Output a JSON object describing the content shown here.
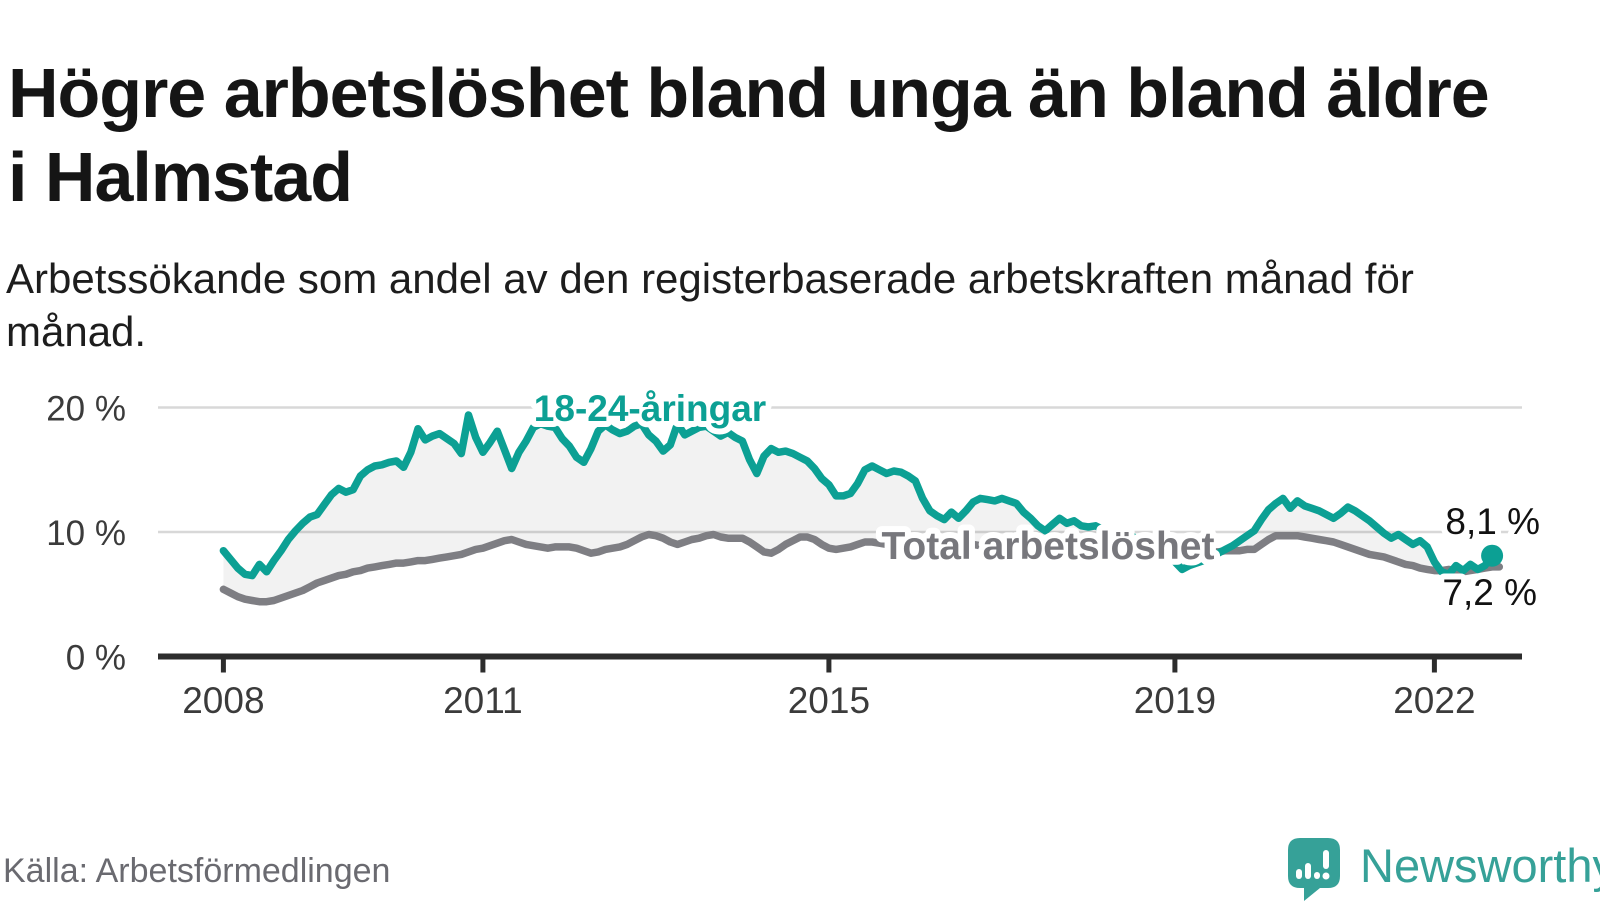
{
  "title": "Högre arbetslöshet bland unga än bland äldre i Halmstad",
  "subtitle": "Arbetssökande som andel av den registerbaserade arbetskraften månad för månad.",
  "source": "Källa: Arbetsförmedlingen",
  "brand": {
    "name": "Newsworthy",
    "color": "#36a198"
  },
  "colors": {
    "youth_line": "#0ca094",
    "total_line": "#7e7e83",
    "band_fill": "rgba(0,0,0,0.05)",
    "gridline": "#d8d8d8",
    "axis": "#2d2d2d",
    "value_label": "#121212"
  },
  "chart_data": {
    "type": "line",
    "title": "Högre arbetslöshet bland unga än bland äldre i Halmstad",
    "subtitle": "Arbetssökande som andel av den registerbaserade arbetskraften månad för månad.",
    "frequency": "monthly",
    "x_start": "2008-01",
    "grid": "horizontal",
    "ylim": [
      0,
      21.5
    ],
    "y_ticks": [
      {
        "value": 0,
        "label": "0 %"
      },
      {
        "value": 10,
        "label": "10 %"
      },
      {
        "value": 20,
        "label": "20 %"
      }
    ],
    "x_ticks": [
      {
        "year": 2008,
        "label": "2008"
      },
      {
        "year": 2011,
        "label": "2011"
      },
      {
        "year": 2015,
        "label": "2015"
      },
      {
        "year": 2019,
        "label": "2019"
      },
      {
        "year": 2022,
        "label": "2022"
      }
    ],
    "band_between_series": true,
    "series": [
      {
        "name": "18-24-åringar",
        "color": "#0ca094",
        "end_label": "8,1 %",
        "end_value": 8.1,
        "marker_on_last_point": true,
        "values": [
          8.5,
          7.8,
          7.1,
          6.6,
          6.5,
          7.4,
          6.8,
          7.7,
          8.5,
          9.4,
          10.1,
          10.7,
          11.2,
          11.4,
          12.2,
          13.0,
          13.5,
          13.2,
          13.4,
          14.5,
          15.0,
          15.3,
          15.4,
          15.6,
          15.7,
          15.2,
          16.4,
          18.3,
          17.4,
          17.7,
          17.9,
          17.5,
          17.1,
          16.3,
          19.4,
          17.6,
          16.4,
          17.2,
          18.1,
          16.6,
          15.1,
          16.4,
          17.3,
          18.4,
          18.7,
          18.5,
          18.4,
          17.5,
          16.9,
          16.0,
          15.6,
          16.7,
          18.1,
          18.6,
          18.2,
          17.9,
          18.1,
          18.5,
          18.7,
          17.8,
          17.3,
          16.5,
          17.0,
          18.7,
          17.8,
          18.1,
          18.4,
          18.5,
          18.1,
          17.7,
          18.0,
          17.6,
          17.3,
          15.8,
          14.7,
          16.1,
          16.7,
          16.4,
          16.5,
          16.3,
          16.0,
          15.7,
          15.1,
          14.3,
          13.8,
          12.9,
          12.9,
          13.1,
          13.9,
          15.0,
          15.3,
          15.0,
          14.7,
          14.9,
          14.8,
          14.5,
          14.1,
          12.7,
          11.7,
          11.3,
          11.0,
          11.6,
          11.1,
          11.7,
          12.4,
          12.7,
          12.6,
          12.5,
          12.7,
          12.5,
          12.3,
          11.6,
          11.1,
          10.5,
          10.1,
          10.6,
          11.1,
          10.7,
          10.9,
          10.5,
          10.4,
          10.5,
          10.2,
          9.8,
          9.4,
          9.1,
          9.7,
          9.3,
          8.9,
          8.6,
          8.3,
          8.0,
          7.6,
          7.0,
          7.3,
          7.5,
          7.7,
          8.0,
          8.3,
          8.6,
          8.9,
          9.3,
          9.7,
          10.1,
          11.0,
          11.8,
          12.3,
          12.7,
          11.9,
          12.5,
          12.1,
          11.9,
          11.7,
          11.4,
          11.1,
          11.5,
          12.0,
          11.7,
          11.3,
          10.9,
          10.4,
          9.9,
          9.5,
          9.8,
          9.4,
          9.0,
          9.3,
          8.8,
          7.6,
          6.8,
          6.6,
          7.3,
          6.9,
          7.4,
          7.0,
          7.3,
          8.1
        ]
      },
      {
        "name": "Total arbetslöshet",
        "color": "#7e7e83",
        "end_label": "7,2 %",
        "end_value": 7.2,
        "marker_on_last_point": false,
        "values": [
          5.4,
          5.1,
          4.8,
          4.6,
          4.5,
          4.4,
          4.4,
          4.5,
          4.7,
          4.9,
          5.1,
          5.3,
          5.6,
          5.9,
          6.1,
          6.3,
          6.5,
          6.6,
          6.8,
          6.9,
          7.1,
          7.2,
          7.3,
          7.4,
          7.5,
          7.5,
          7.6,
          7.7,
          7.7,
          7.8,
          7.9,
          8.0,
          8.1,
          8.2,
          8.4,
          8.6,
          8.7,
          8.9,
          9.1,
          9.3,
          9.4,
          9.2,
          9.0,
          8.9,
          8.8,
          8.7,
          8.8,
          8.8,
          8.8,
          8.7,
          8.5,
          8.3,
          8.4,
          8.6,
          8.7,
          8.8,
          9.0,
          9.3,
          9.6,
          9.8,
          9.7,
          9.5,
          9.2,
          9.0,
          9.2,
          9.4,
          9.5,
          9.7,
          9.8,
          9.6,
          9.5,
          9.5,
          9.5,
          9.2,
          8.8,
          8.4,
          8.3,
          8.6,
          9.0,
          9.3,
          9.6,
          9.6,
          9.4,
          9.0,
          8.7,
          8.6,
          8.7,
          8.8,
          9.0,
          9.2,
          9.2,
          9.1,
          9.0,
          9.0,
          9.1,
          9.2,
          9.2,
          9.1,
          9.0,
          8.9,
          8.9,
          9.0,
          9.1,
          9.1,
          9.0,
          8.9,
          8.9,
          8.9,
          8.9,
          8.8,
          8.8,
          8.7,
          8.7,
          8.8,
          8.8,
          8.9,
          8.9,
          8.8,
          8.8,
          8.7,
          8.7,
          8.6,
          8.5,
          8.4,
          8.4,
          8.4,
          8.5,
          8.5,
          8.4,
          8.4,
          8.3,
          8.3,
          8.3,
          8.2,
          8.2,
          8.3,
          8.3,
          8.4,
          8.4,
          8.5,
          8.5,
          8.5,
          8.6,
          8.6,
          9.0,
          9.4,
          9.7,
          9.7,
          9.7,
          9.7,
          9.6,
          9.5,
          9.4,
          9.3,
          9.2,
          9.0,
          8.8,
          8.6,
          8.4,
          8.2,
          8.1,
          8.0,
          7.8,
          7.6,
          7.4,
          7.3,
          7.1,
          7.0,
          6.9,
          6.9,
          7.0,
          6.9,
          6.8,
          6.9,
          7.0,
          7.1,
          7.2,
          7.2
        ]
      }
    ]
  }
}
